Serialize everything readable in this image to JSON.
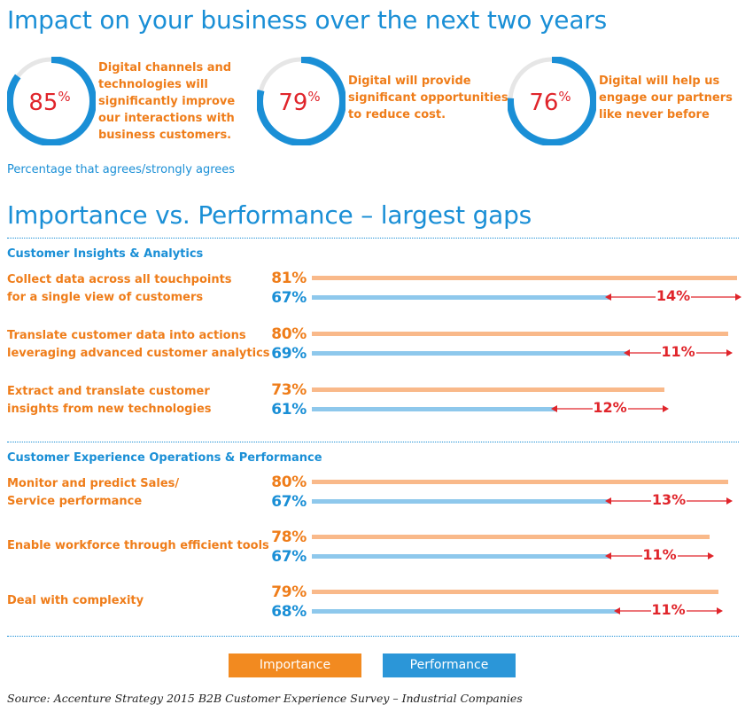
{
  "header": {
    "title": "Impact on your business over the next two years"
  },
  "stats": [
    {
      "value": 85,
      "suffix": "%",
      "lines": [
        "Digital channels and",
        "technologies will",
        "significantly improve",
        "our interactions with",
        "business customers."
      ]
    },
    {
      "value": 79,
      "suffix": "%",
      "lines": [
        "Digital will provide",
        "significant opportunities",
        "to reduce cost."
      ]
    },
    {
      "value": 76,
      "suffix": "%",
      "lines": [
        "Digital will help us",
        "engage our partners",
        "like never before"
      ]
    }
  ],
  "stats_caption": "Percentage that agrees/strongly agrees",
  "chart_data": {
    "type": "bar",
    "title": "Importance vs. Performance – largest gaps",
    "orientation": "horizontal",
    "value_unit": "%",
    "groups": [
      {
        "name": "Customer Insights & Analytics",
        "items": [
          {
            "lines": [
              "Collect data across all touchpoints",
              "for a single view of customers"
            ],
            "importance": 81,
            "performance": 67,
            "gap": "14%"
          },
          {
            "lines": [
              "Translate customer data into actions",
              "leveraging advanced customer analytics"
            ],
            "importance": 80,
            "performance": 69,
            "gap": "11%"
          },
          {
            "lines": [
              "Extract and translate customer",
              "insights from new technologies"
            ],
            "importance": 73,
            "performance": 61,
            "gap": "12%"
          }
        ]
      },
      {
        "name": "Customer Experience Operations & Performance",
        "items": [
          {
            "lines": [
              "Monitor and predict Sales/",
              "Service performance"
            ],
            "importance": 80,
            "performance": 67,
            "gap": "13%"
          },
          {
            "lines": [
              "Enable workforce through efficient tools"
            ],
            "importance": 78,
            "performance": 67,
            "gap": "11%"
          },
          {
            "lines": [
              "Deal with complexity"
            ],
            "importance": 79,
            "performance": 68,
            "gap": "11%"
          }
        ]
      }
    ],
    "series": [
      {
        "name": "Importance",
        "color": "#ef7d1a"
      },
      {
        "name": "Performance",
        "color": "#1a8fd6"
      }
    ]
  },
  "legend": {
    "importance": "Importance",
    "performance": "Performance"
  },
  "source": "Source: Accenture Strategy 2015 B2B Customer Experience Survey – Industrial Companies",
  "colors": {
    "blue": "#1a8fd6",
    "orange": "#ef7d1a",
    "bar_importance": "#f9b98a",
    "bar_performance": "#8ec8ec",
    "gap_arrow": "#e0252b",
    "ring_track": "#e6e6e6",
    "ring_fill": "#1a8fd6",
    "ring_number": "#e0252b"
  }
}
